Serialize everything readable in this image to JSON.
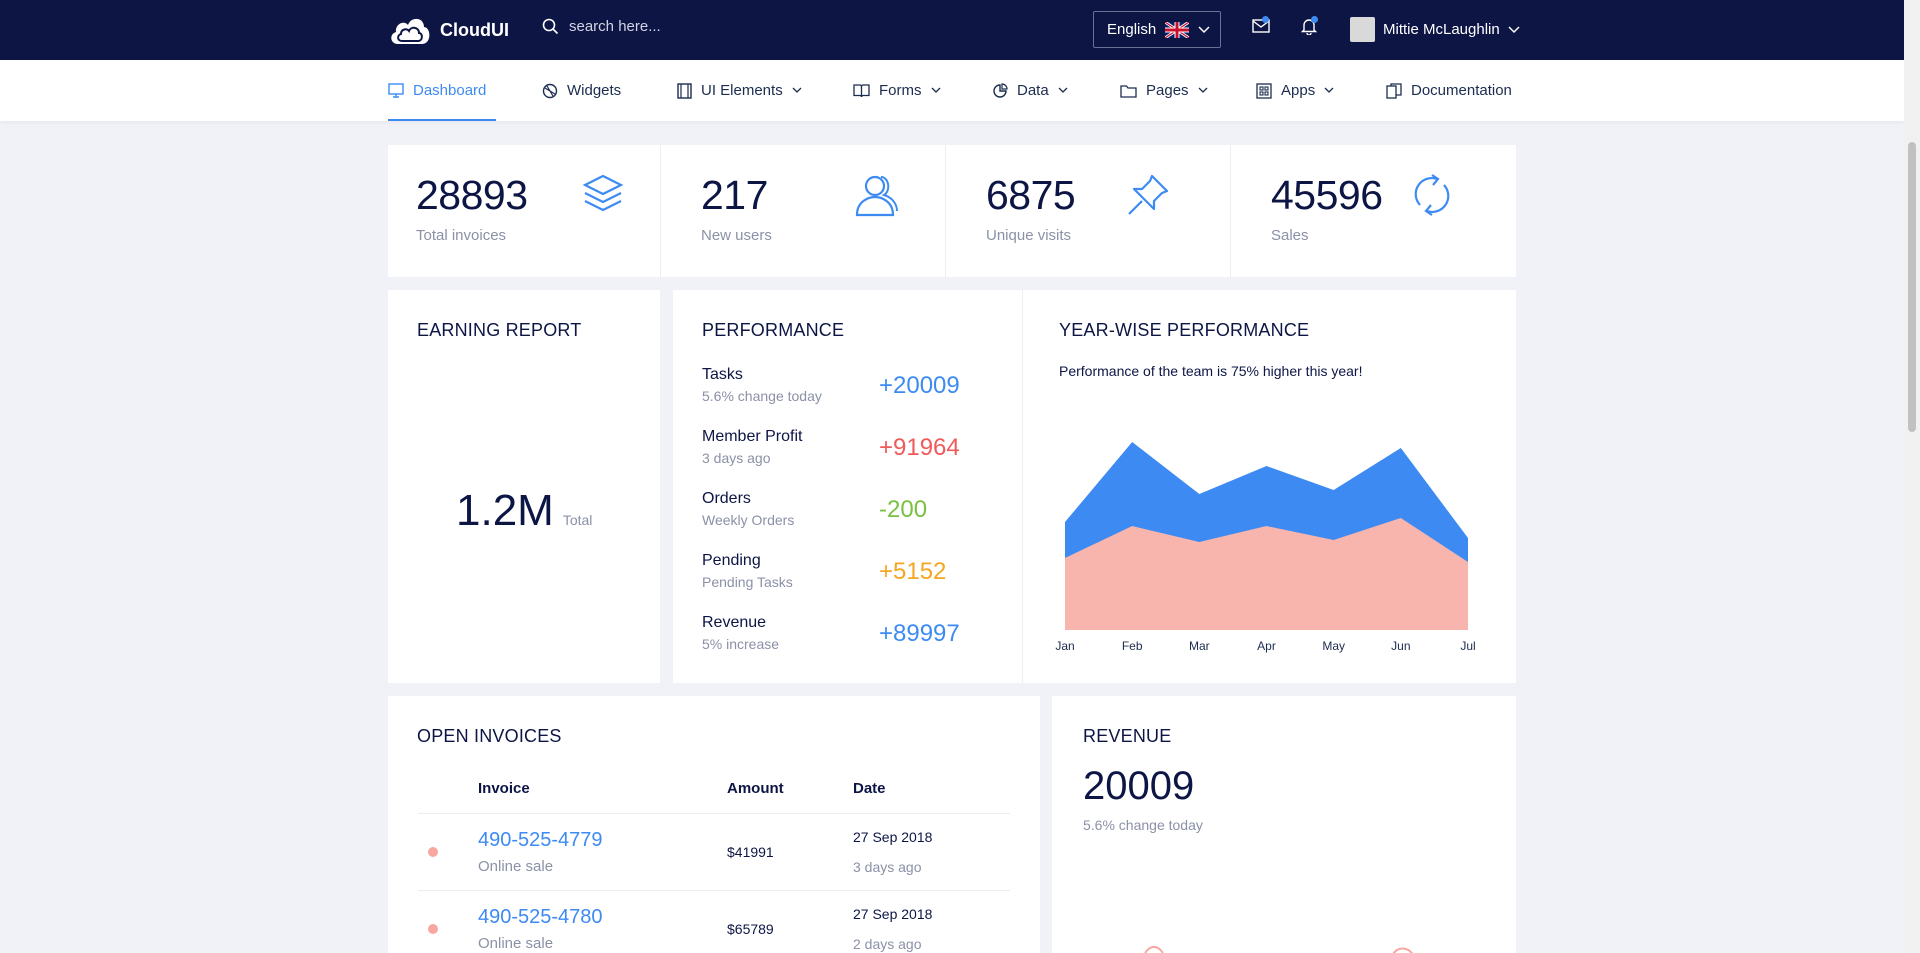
{
  "brand": {
    "name": "CloudUI"
  },
  "search": {
    "placeholder": "search here..."
  },
  "language": {
    "label": "English"
  },
  "user": {
    "name": "Mittie McLaughlin"
  },
  "nav": [
    {
      "label": "Dashboard",
      "icon": "monitor-icon",
      "active": true
    },
    {
      "label": "Widgets",
      "icon": "palette-icon"
    },
    {
      "label": "UI Elements",
      "icon": "film-icon"
    },
    {
      "label": "Forms",
      "icon": "book-icon"
    },
    {
      "label": "Data",
      "icon": "pie-icon"
    },
    {
      "label": "Pages",
      "icon": "folder-icon"
    },
    {
      "label": "Apps",
      "icon": "grid-icon"
    },
    {
      "label": "Documentation",
      "icon": "documents-icon"
    }
  ],
  "stats": [
    {
      "value": "28893",
      "label": "Total invoices",
      "icon": "layers-icon"
    },
    {
      "value": "217",
      "label": "New users",
      "icon": "users-icon"
    },
    {
      "value": "6875",
      "label": "Unique visits",
      "icon": "pin-icon"
    },
    {
      "value": "45596",
      "label": "Sales",
      "icon": "refresh-icon"
    }
  ],
  "earning": {
    "title": "EARNING REPORT",
    "value": "1.2M",
    "suffix": "Total"
  },
  "performance": {
    "title": "PERFORMANCE",
    "rows": [
      {
        "name": "Tasks",
        "sub": "5.6% change today",
        "value": "+20009",
        "color": "#3d8bf2"
      },
      {
        "name": "Member Profit",
        "sub": "3 days ago",
        "value": "+91964",
        "color": "#ef5a5a"
      },
      {
        "name": "Orders",
        "sub": "Weekly Orders",
        "value": "-200",
        "color": "#7ac142"
      },
      {
        "name": "Pending",
        "sub": "Pending Tasks",
        "value": "+5152",
        "color": "#f5a623"
      },
      {
        "name": "Revenue",
        "sub": "5% increase",
        "value": "+89997",
        "color": "#3d8bf2"
      }
    ]
  },
  "yearwise": {
    "title": "YEAR-WISE PERFORMANCE",
    "subtitle": "Performance of the team is 75% higher this year!"
  },
  "chart_data": {
    "type": "area",
    "categories": [
      "Jan",
      "Feb",
      "Mar",
      "Apr",
      "May",
      "Jun",
      "Jul"
    ],
    "series": [
      {
        "values": [
          54,
          94,
          68,
          82,
          70,
          91,
          46
        ],
        "color": "#3d8bf2"
      },
      {
        "values": [
          36,
          52,
          44,
          52,
          45,
          56,
          34
        ],
        "color": "#f7b5ad"
      }
    ],
    "ylim": [
      0,
      100
    ],
    "grid": false
  },
  "invoices": {
    "title": "OPEN INVOICES",
    "headers": {
      "invoice": "Invoice",
      "amount": "Amount",
      "date": "Date"
    },
    "rows": [
      {
        "number": "490-525-4779",
        "type": "Online sale",
        "amount": "$41991",
        "date": "27 Sep 2018",
        "ago": "3 days ago"
      },
      {
        "number": "490-525-4780",
        "type": "Online sale",
        "amount": "$65789",
        "date": "27 Sep 2018",
        "ago": "2 days ago"
      }
    ]
  },
  "revenue": {
    "title": "REVENUE",
    "value": "20009",
    "sub": "5.6% change today"
  }
}
